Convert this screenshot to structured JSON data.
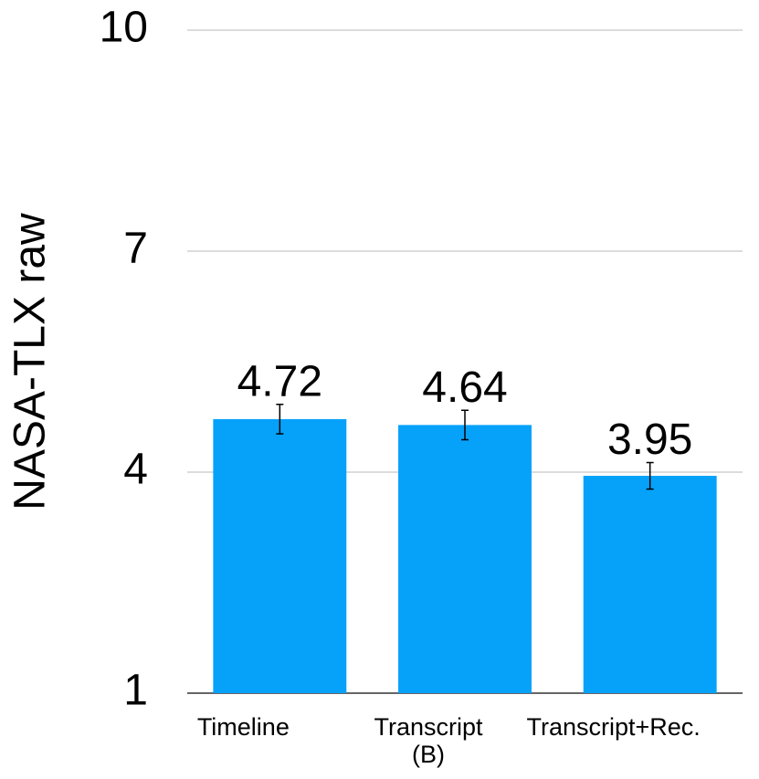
{
  "chart_data": {
    "type": "bar",
    "y_label": "NASA-TLX raw",
    "categories": [
      "Timeline",
      "Transcript\n(B)",
      "Transcript+Rec."
    ],
    "values": [
      4.72,
      4.64,
      3.95
    ],
    "errors": [
      0.2,
      0.2,
      0.18
    ],
    "color": "#06a2fa",
    "ylim": [
      1,
      10
    ],
    "yticks": [
      1,
      4,
      7,
      10
    ],
    "grid": true
  }
}
